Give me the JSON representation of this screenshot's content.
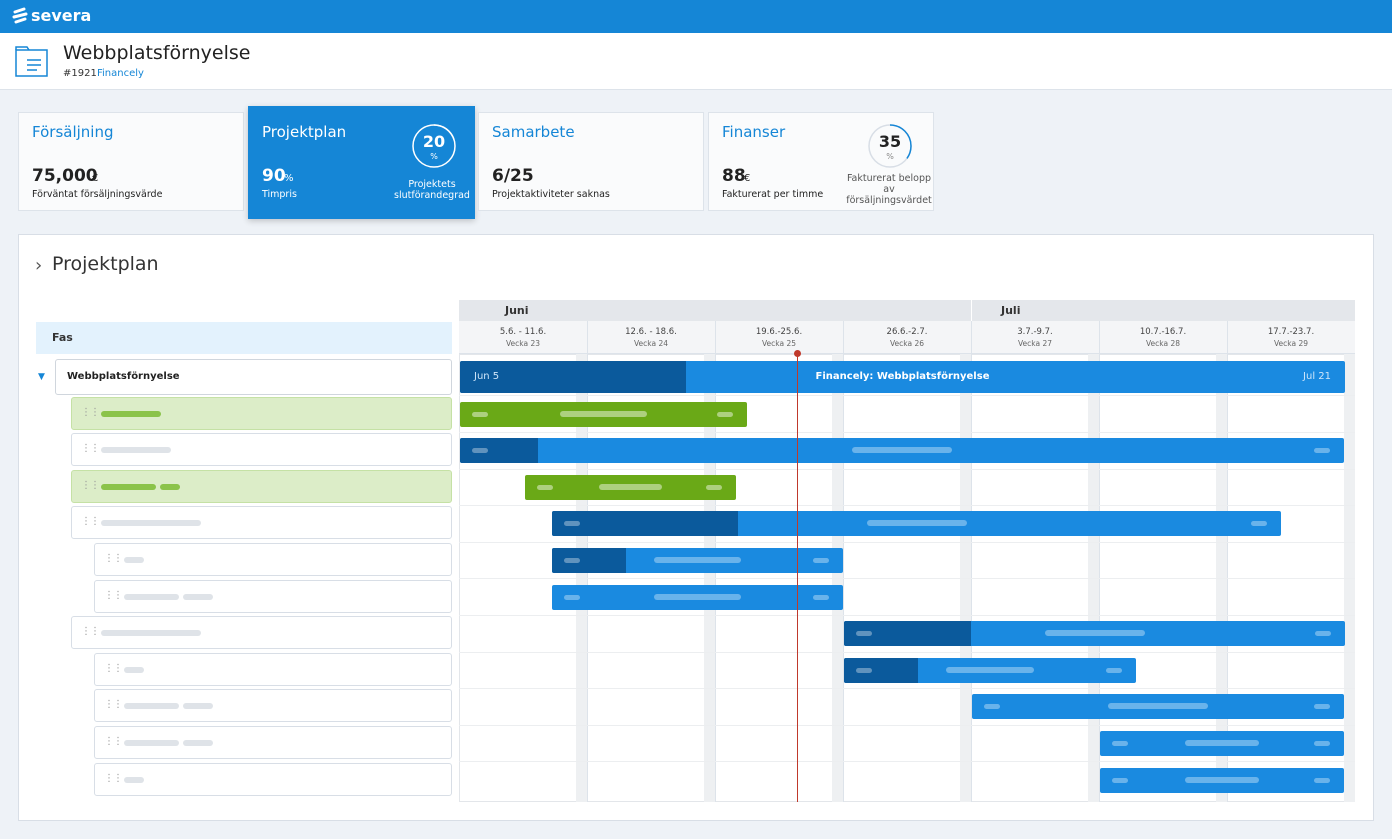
{
  "app": {
    "logo": "severa"
  },
  "header": {
    "title": "Webbplatsförnyelse",
    "number": "#1921",
    "customer": "Financely"
  },
  "cards": [
    {
      "title": "Försäljning",
      "value": "75,000",
      "unit": "€",
      "caption": "Förväntat försäljningsvärde"
    },
    {
      "title": "Projektplan",
      "value": "90",
      "unit": "%",
      "caption": "Timpris",
      "badge": 20,
      "badge_unit": "%",
      "badge_caption": "Projektets slutförandegrad"
    },
    {
      "title": "Samarbete",
      "value": "6/25",
      "caption": "Projektaktiviteter saknas"
    },
    {
      "title": "Finanser",
      "value": "88",
      "unit": "€",
      "caption": "Fakturerat per timme",
      "badge": 35,
      "badge_unit": "%",
      "badge_caption": "Fakturerat belopp av försäljningsvärdet"
    }
  ],
  "plan": {
    "title": "Projektplan",
    "column": "Fas",
    "root": "Webbplatsförnyelse",
    "months": [
      "Juni",
      "Juli"
    ],
    "weeks": [
      {
        "dates": "5.6. - 11.6.",
        "week": "Vecka 23"
      },
      {
        "dates": "12.6. - 18.6.",
        "week": "Vecka 24"
      },
      {
        "dates": "19.6.-25.6.",
        "week": "Vecka 25"
      },
      {
        "dates": "26.6.-2.7.",
        "week": "Vecka 26"
      },
      {
        "dates": "3.7.-9.7.",
        "week": "Vecka 27"
      },
      {
        "dates": "10.7.-16.7.",
        "week": "Vecka 28"
      },
      {
        "dates": "17.7.-23.7.",
        "week": "Vecka 29"
      }
    ],
    "bar": {
      "start": "Jun 5",
      "label": "Financely: Webbplatsförnyelse",
      "end": "Jul 21"
    }
  }
}
